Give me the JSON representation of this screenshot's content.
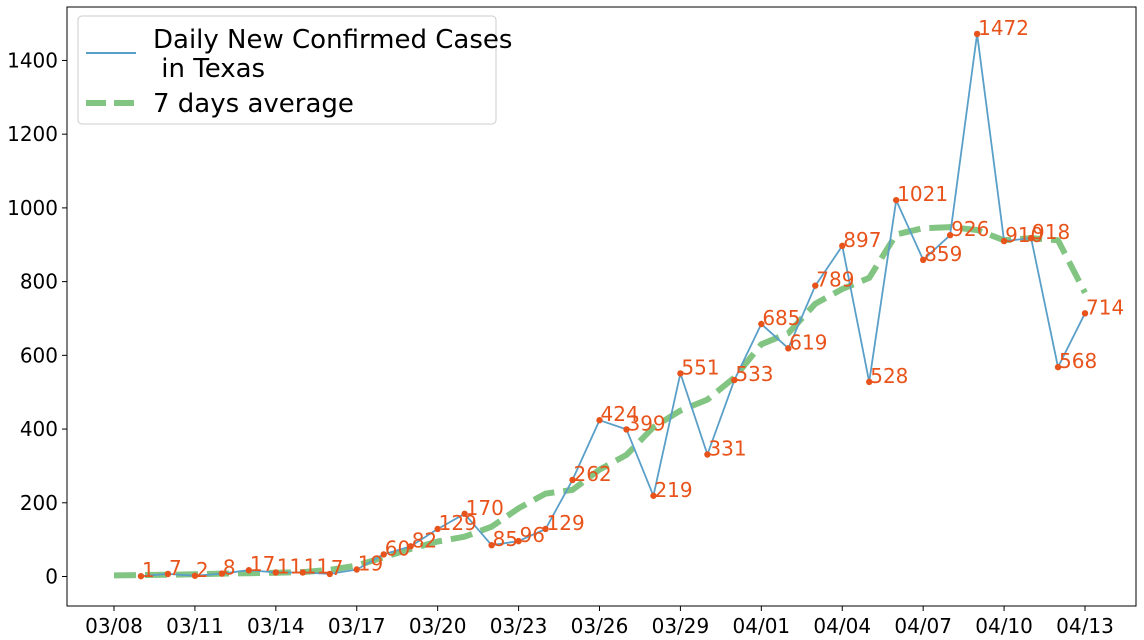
{
  "chart_data": {
    "type": "line",
    "title": "",
    "xlabel": "",
    "ylabel": "",
    "x_tick_labels": [
      "03/08",
      "03/11",
      "03/14",
      "03/17",
      "03/20",
      "03/23",
      "03/26",
      "03/29",
      "04/01",
      "04/04",
      "04/07",
      "04/10",
      "04/13"
    ],
    "y_ticks": [
      0,
      200,
      400,
      600,
      800,
      1000,
      1200,
      1400
    ],
    "ylim": [
      -80,
      1545
    ],
    "xlim": [
      "03/08",
      "04/14"
    ],
    "grid": false,
    "legend_position": "upper-left",
    "series": [
      {
        "name": "Daily New Confirmed Cases\n in Texas",
        "color": "#5a9fc8",
        "style": "solid",
        "x": [
          "03/09",
          "03/10",
          "03/11",
          "03/12",
          "03/13",
          "03/14",
          "03/15",
          "03/16",
          "03/17",
          "03/18",
          "03/19",
          "03/20",
          "03/21",
          "03/22",
          "03/23",
          "03/24",
          "03/25",
          "03/26",
          "03/27",
          "03/28",
          "03/29",
          "03/30",
          "03/31",
          "04/01",
          "04/02",
          "04/03",
          "04/04",
          "04/05",
          "04/06",
          "04/07",
          "04/08",
          "04/09",
          "04/10",
          "04/11",
          "04/12",
          "04/13"
        ],
        "values": [
          1,
          7,
          2,
          8,
          17,
          11,
          11,
          7,
          19,
          60,
          82,
          129,
          170,
          85,
          96,
          129,
          262,
          424,
          399,
          219,
          551,
          331,
          533,
          685,
          619,
          789,
          897,
          528,
          1021,
          859,
          926,
          1472,
          910,
          918,
          568,
          714
        ],
        "labels": [
          "1",
          "7",
          "2",
          "8",
          "17",
          "11",
          "11",
          "7",
          "19",
          "60",
          "82",
          "129",
          "170",
          "85",
          "96",
          "129",
          "262",
          "424",
          "399",
          "219",
          "551",
          "331",
          "533",
          "685",
          "619",
          "789",
          "897",
          "528",
          "1021",
          "859",
          "926",
          "1472",
          "910",
          "918",
          "568",
          "714"
        ],
        "marker_color": "#e8531b"
      },
      {
        "name": "7 days average",
        "color": "#6cba6c",
        "style": "dashed",
        "x": [
          "03/08",
          "03/09",
          "03/10",
          "03/11",
          "03/12",
          "03/13",
          "03/14",
          "03/15",
          "03/16",
          "03/17",
          "03/18",
          "03/19",
          "03/20",
          "03/21",
          "03/22",
          "03/23",
          "03/24",
          "03/25",
          "03/26",
          "03/27",
          "03/28",
          "03/29",
          "03/30",
          "03/31",
          "04/01",
          "04/02",
          "04/03",
          "04/04",
          "04/05",
          "04/06",
          "04/07",
          "04/08",
          "04/09",
          "04/10",
          "04/11",
          "04/12",
          "04/13"
        ],
        "values": [
          3,
          4,
          5,
          6,
          8,
          9,
          10,
          12,
          18,
          30,
          52,
          75,
          95,
          108,
          135,
          185,
          225,
          235,
          290,
          330,
          405,
          450,
          480,
          540,
          630,
          660,
          740,
          780,
          810,
          928,
          945,
          948,
          940,
          912,
          918,
          912,
          770
        ]
      }
    ]
  }
}
